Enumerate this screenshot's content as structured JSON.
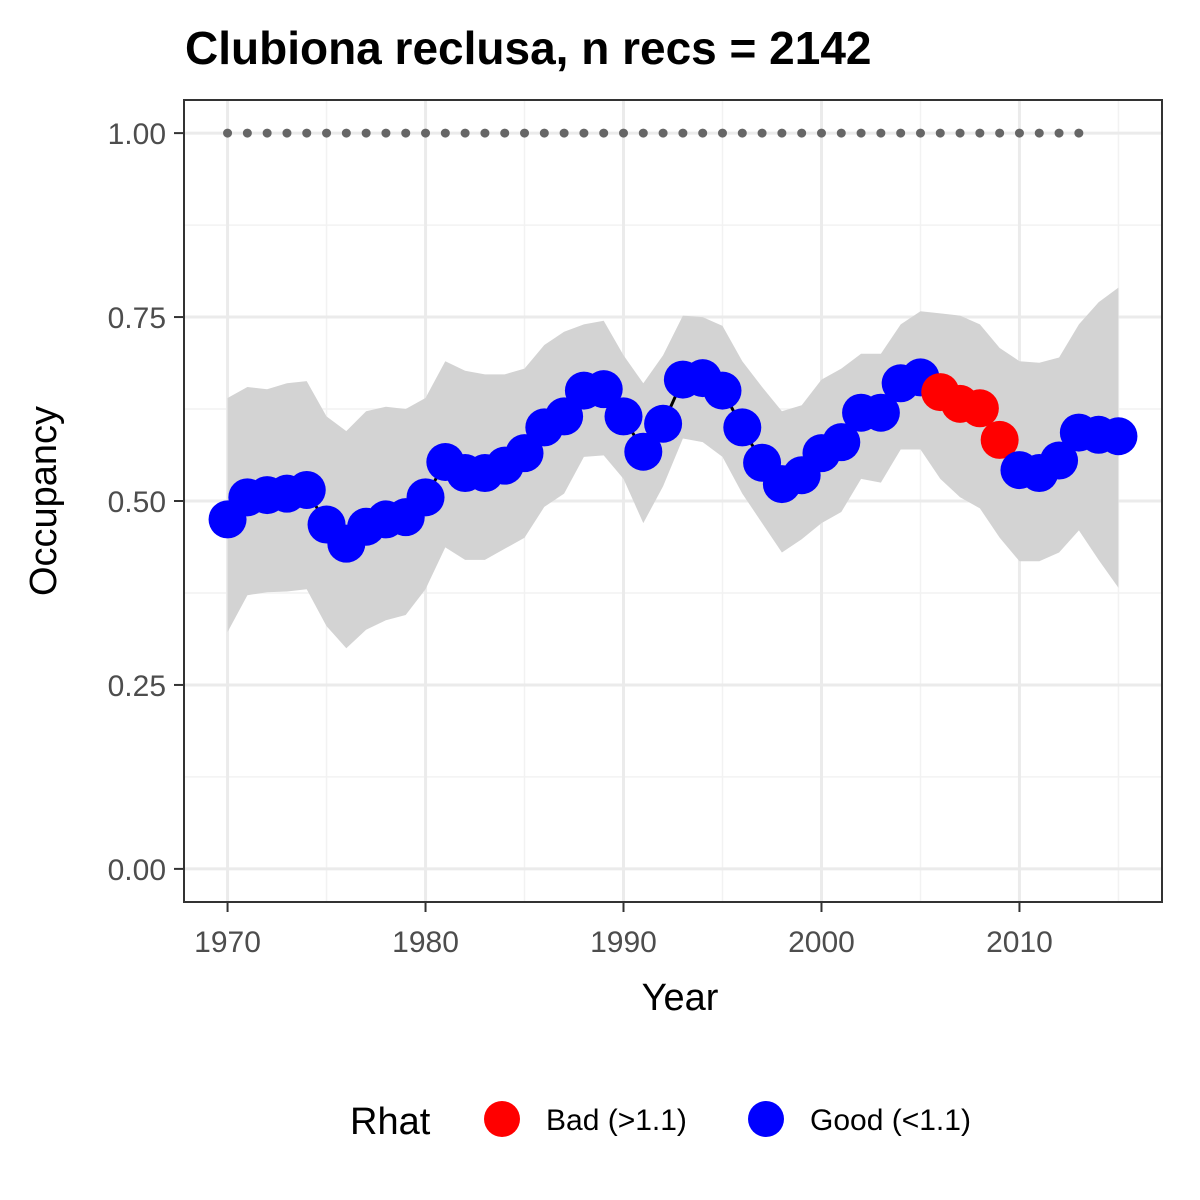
{
  "chart_data": {
    "type": "line",
    "title": "Clubiona reclusa, n recs = 2142",
    "xlabel": "Year",
    "ylabel": "Occupancy",
    "xlim": [
      1967.8,
      2017.2
    ],
    "ylim": [
      -0.045,
      1.045
    ],
    "x_ticks": [
      1970,
      1980,
      1990,
      2000,
      2010
    ],
    "x_tick_labels": [
      "1970",
      "1980",
      "1990",
      "2000",
      "2010"
    ],
    "y_ticks": [
      0,
      0.25,
      0.5,
      0.75,
      1.0
    ],
    "y_tick_labels": [
      "0.00",
      "0.25",
      "0.50",
      "0.75",
      "1.00"
    ],
    "grid": true,
    "series": [
      {
        "years": [
          1970,
          1971,
          1972,
          1973,
          1974,
          1975,
          1976,
          1977,
          1978,
          1979,
          1980,
          1981,
          1982,
          1983,
          1984,
          1985,
          1986,
          1987,
          1988,
          1989,
          1990,
          1991,
          1992,
          1993,
          1994,
          1995,
          1996,
          1997,
          1998,
          1999,
          2000,
          2001,
          2002,
          2003,
          2004,
          2005,
          2006,
          2007,
          2008,
          2009,
          2010,
          2011,
          2012,
          2013,
          2014,
          2015
        ],
        "values": [
          0.475,
          0.505,
          0.508,
          0.51,
          0.515,
          0.468,
          0.442,
          0.465,
          0.475,
          0.478,
          0.505,
          0.553,
          0.538,
          0.538,
          0.548,
          0.565,
          0.6,
          0.615,
          0.65,
          0.652,
          0.615,
          0.567,
          0.605,
          0.665,
          0.667,
          0.65,
          0.6,
          0.552,
          0.523,
          0.535,
          0.565,
          0.58,
          0.62,
          0.62,
          0.66,
          0.668,
          0.648,
          0.632,
          0.626,
          0.583,
          0.542,
          0.538,
          0.555,
          0.593,
          0.59,
          0.588
        ],
        "lower": [
          0.322,
          0.372,
          0.376,
          0.377,
          0.38,
          0.33,
          0.3,
          0.325,
          0.338,
          0.345,
          0.38,
          0.437,
          0.42,
          0.42,
          0.435,
          0.45,
          0.492,
          0.51,
          0.56,
          0.562,
          0.53,
          0.47,
          0.52,
          0.585,
          0.58,
          0.56,
          0.51,
          0.47,
          0.43,
          0.448,
          0.47,
          0.485,
          0.53,
          0.525,
          0.57,
          0.57,
          0.53,
          0.505,
          0.49,
          0.45,
          0.418,
          0.418,
          0.43,
          0.46,
          0.42,
          0.382
        ],
        "upper": [
          0.64,
          0.655,
          0.652,
          0.66,
          0.663,
          0.615,
          0.595,
          0.622,
          0.628,
          0.625,
          0.64,
          0.69,
          0.677,
          0.672,
          0.672,
          0.68,
          0.712,
          0.73,
          0.74,
          0.745,
          0.698,
          0.66,
          0.698,
          0.752,
          0.75,
          0.738,
          0.69,
          0.655,
          0.622,
          0.63,
          0.665,
          0.68,
          0.7,
          0.7,
          0.74,
          0.758,
          0.755,
          0.752,
          0.74,
          0.708,
          0.69,
          0.688,
          0.695,
          0.74,
          0.77,
          0.79
        ],
        "rhat_status": [
          "Good",
          "Good",
          "Good",
          "Good",
          "Good",
          "Good",
          "Good",
          "Good",
          "Good",
          "Good",
          "Good",
          "Good",
          "Good",
          "Good",
          "Good",
          "Good",
          "Good",
          "Good",
          "Good",
          "Good",
          "Good",
          "Good",
          "Good",
          "Good",
          "Good",
          "Good",
          "Good",
          "Good",
          "Good",
          "Good",
          "Good",
          "Good",
          "Good",
          "Good",
          "Good",
          "Good",
          "Bad",
          "Bad",
          "Bad",
          "Bad",
          "Good",
          "Good",
          "Good",
          "Good",
          "Good",
          "Good"
        ]
      }
    ],
    "dotted_reference": {
      "y": 1.0,
      "x_start": 1970,
      "x_end": 2013,
      "color": "#666666"
    },
    "ribbon_color": "#d3d3d3",
    "colors": {
      "Bad": "#ff0000",
      "Good": "#0000ff"
    },
    "legend": {
      "title": "Rhat",
      "position": "bottom",
      "items": [
        {
          "label": "Bad (>1.1)",
          "color": "#ff0000"
        },
        {
          "label": "Good (<1.1)",
          "color": "#0000ff"
        }
      ]
    }
  }
}
